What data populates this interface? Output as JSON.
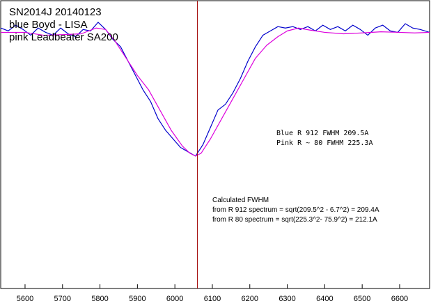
{
  "chart_data": {
    "type": "line",
    "title_lines": [
      "SN2014J  20140123",
      "blue Boyd - LISA",
      "pink Leadbeater SA200"
    ],
    "xlabel": "",
    "ylabel": "",
    "xlim": [
      5535,
      6680
    ],
    "ylim": [
      0,
      1
    ],
    "x_ticks": [
      5600,
      5700,
      5800,
      5900,
      6000,
      6100,
      6200,
      6300,
      6400,
      6500,
      6600
    ],
    "grid": false,
    "marker_line": {
      "x": 6060,
      "color": "#a00000"
    },
    "series": [
      {
        "color": "#0000cc",
        "x": [
          5535,
          5555,
          5575,
          5595,
          5615,
          5635,
          5655,
          5675,
          5695,
          5715,
          5735,
          5755,
          5775,
          5795,
          5815,
          5835,
          5855,
          5875,
          5895,
          5915,
          5935,
          5955,
          5975,
          5995,
          6015,
          6035,
          6055,
          6075,
          6095,
          6115,
          6135,
          6155,
          6175,
          6195,
          6215,
          6235,
          6255,
          6275,
          6295,
          6315,
          6335,
          6355,
          6375,
          6395,
          6415,
          6435,
          6455,
          6475,
          6495,
          6515,
          6535,
          6555,
          6575,
          6595,
          6615,
          6635,
          6655,
          6680
        ],
        "y": [
          0.905,
          0.895,
          0.915,
          0.9,
          0.88,
          0.905,
          0.89,
          0.88,
          0.905,
          0.885,
          0.875,
          0.9,
          0.895,
          0.925,
          0.9,
          0.865,
          0.84,
          0.79,
          0.74,
          0.69,
          0.65,
          0.59,
          0.55,
          0.52,
          0.49,
          0.475,
          0.46,
          0.5,
          0.56,
          0.62,
          0.64,
          0.68,
          0.73,
          0.79,
          0.84,
          0.88,
          0.895,
          0.91,
          0.905,
          0.91,
          0.9,
          0.91,
          0.895,
          0.915,
          0.9,
          0.91,
          0.895,
          0.915,
          0.9,
          0.88,
          0.905,
          0.915,
          0.895,
          0.89,
          0.92,
          0.905,
          0.9,
          0.89
        ]
      },
      {
        "color": "#dd00dd",
        "x": [
          5535,
          5600,
          5650,
          5700,
          5750,
          5790,
          5815,
          5840,
          5870,
          5900,
          5930,
          5960,
          5990,
          6020,
          6040,
          6055,
          6070,
          6095,
          6125,
          6155,
          6185,
          6215,
          6245,
          6275,
          6300,
          6330,
          6360,
          6400,
          6450,
          6500,
          6550,
          6600,
          6640,
          6680
        ],
        "y": [
          0.89,
          0.89,
          0.88,
          0.882,
          0.885,
          0.905,
          0.9,
          0.86,
          0.8,
          0.74,
          0.69,
          0.62,
          0.55,
          0.495,
          0.47,
          0.46,
          0.47,
          0.52,
          0.59,
          0.66,
          0.73,
          0.8,
          0.845,
          0.875,
          0.895,
          0.905,
          0.898,
          0.89,
          0.885,
          0.888,
          0.892,
          0.89,
          0.888,
          0.89
        ]
      }
    ],
    "annotations": [
      {
        "lines": [
          "Blue R 912  FWHM 209.5A",
          "Pink  R ~  80 FWHM 225.3A"
        ]
      },
      {
        "lines": [
          "Calculated FWHM",
          "from R 912 spectrum = sqrt(209.5^2 - 6.7^2)  = 209.4A",
          "from R 80   spectrum = sqrt(225.3^2- 75.9^2) = 212.1A"
        ]
      }
    ]
  }
}
